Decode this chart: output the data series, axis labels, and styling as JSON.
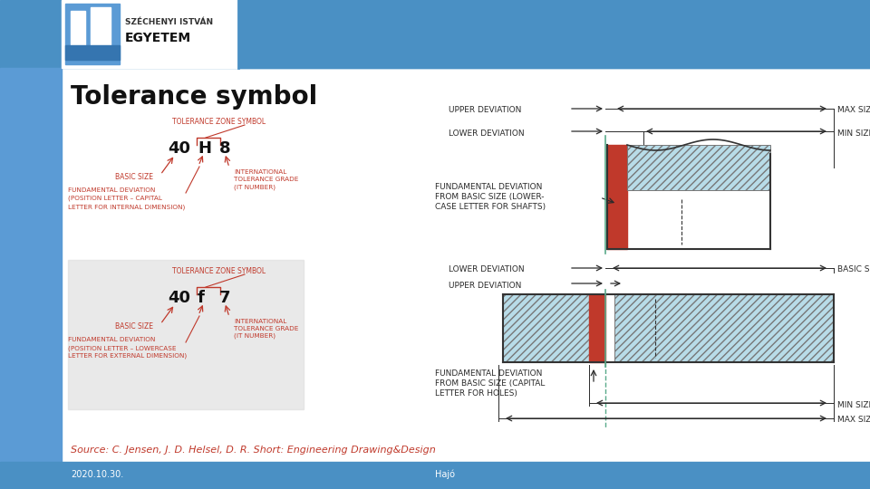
{
  "title": "Tolerance symbol",
  "source_text": "Source: C. Jensen, J. D. Helsel, D. R. Short: Engineering Drawing&Design",
  "date_text": "2020.10.30.",
  "page_text": "Hajó",
  "bg_color": "#ffffff",
  "header_blue": "#4a90c4",
  "slide_blue": "#5b9bd5",
  "red_color": "#c0392b",
  "hatch_color": "#b8dce8",
  "label_color": "#c0392b"
}
